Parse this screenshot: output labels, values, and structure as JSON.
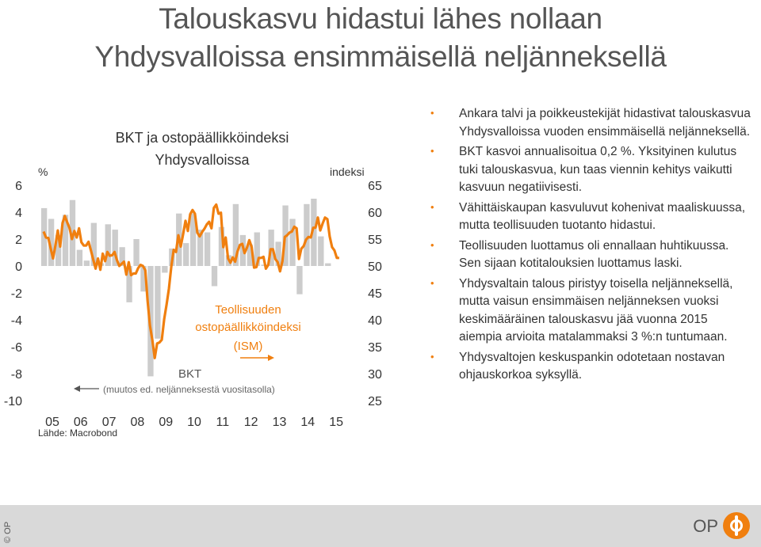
{
  "slide": {
    "title_line1": "Talouskasvu hidastui lähes nollaan",
    "title_line2": "Yhdysvalloissa ensimmäisellä neljänneksellä",
    "copyright": "© OP",
    "logo_text": "OP"
  },
  "bullets": [
    "Ankara talvi ja poikkeustekijät hidastivat talouskasvua Yhdysvalloissa vuoden ensimmäisellä neljänneksellä.",
    "BKT kasvoi annualisoitua 0,2 %. Yksityinen kulutus tuki talouskasvua, kun taas viennin kehitys vaikutti kasvuun negatiivisesti.",
    "Vähittäiskaupan kasvuluvut kohenivat maaliskuussa, mutta teollisuuden tuotanto hidastui.",
    "Teollisuuden luottamus oli ennallaan huhtikuussa. Sen sijaan kotitalouksien luottamus laski.",
    "Yhdysvaltain talous piristyy toisella neljänneksellä, mutta vaisun ensimmäisen neljänneksen vuoksi keskimääräinen talouskasvu jää vuonna 2015 aiempia arvioita matalammaksi 3 %:n tuntumaan.",
    "Yhdysvaltojen keskuspankin odotetaan nostavan ohjauskorkoa syksyllä."
  ],
  "colors": {
    "bar": "#cccccc",
    "line": "#f07f0f",
    "text": "#333333"
  },
  "chart_data": {
    "type": "bar+line",
    "title": "BKT ja ostopäällikköindeksi\nYhdysvalloissa",
    "left_unit": "%",
    "right_unit": "indeksi",
    "source": "Lähde: Macrobond",
    "ylim_left": [
      -10,
      6
    ],
    "yticks_left": [
      "6",
      "4",
      "2",
      "0",
      "-2",
      "-4",
      "-6",
      "-8",
      "-10"
    ],
    "ylim_right": [
      25,
      65
    ],
    "yticks_right": [
      "65",
      "60",
      "55",
      "50",
      "45",
      "40",
      "35",
      "30",
      "25"
    ],
    "xticks": [
      "05",
      "06",
      "07",
      "08",
      "09",
      "10",
      "11",
      "12",
      "13",
      "14",
      "15"
    ],
    "bar_series": {
      "name": "BKT",
      "note": "(muutos ed. neljänneksestä vuositasolla)",
      "x_start": 2005.0,
      "step": 0.25,
      "values": [
        4.3,
        3.5,
        2.3,
        3.8,
        4.9,
        1.2,
        0.4,
        3.2,
        0.2,
        3.1,
        2.7,
        1.4,
        -2.7,
        2.0,
        -1.9,
        -8.2,
        -5.4,
        -0.5,
        1.3,
        3.9,
        1.7,
        3.9,
        2.7,
        2.5,
        -1.5,
        2.9,
        0.8,
        4.6,
        2.3,
        1.6,
        2.5,
        0.1,
        2.7,
        1.8,
        4.5,
        3.5,
        -2.1,
        4.6,
        5.0,
        2.2,
        0.2
      ]
    },
    "line_series": {
      "name": "Teollisuuden ostopäällikköindeksi (ISM)",
      "x_start": 2005.0,
      "step": 0.0833,
      "values": [
        56.4,
        55.3,
        55.2,
        53.3,
        51.4,
        53.8,
        56.6,
        53.6,
        58.0,
        59.3,
        58.1,
        57.0,
        55.0,
        56.5,
        55.3,
        57.0,
        54.4,
        53.8,
        53.8,
        54.5,
        52.9,
        51.2,
        49.5,
        51.4,
        49.3,
        52.3,
        50.9,
        52.6,
        51.9,
        52.0,
        52.6,
        51.1,
        50.0,
        50.4,
        50.8,
        48.4,
        50.7,
        48.3,
        48.6,
        48.6,
        49.6,
        50.2,
        50.0,
        49.2,
        43.5,
        38.9,
        36.2,
        32.9,
        35.6,
        35.8,
        36.3,
        40.1,
        42.8,
        45.8,
        49.9,
        53.0,
        52.6,
        55.7,
        53.6,
        55.9,
        58.4,
        56.5,
        59.6,
        60.4,
        59.7,
        56.2,
        55.5,
        56.3,
        56.9,
        57.7,
        58.2,
        57.0,
        60.8,
        61.4,
        59.7,
        59.9,
        53.5,
        55.3,
        51.4,
        50.6,
        51.6,
        50.8,
        52.7,
        53.9,
        54.1,
        52.4,
        53.4,
        54.8,
        53.5,
        49.7,
        49.8,
        51.5,
        51.5,
        51.7,
        49.5,
        50.2,
        53.1,
        53.1,
        51.3,
        50.7,
        49.0,
        50.9,
        55.4,
        55.7,
        56.2,
        56.4,
        57.3,
        57.0,
        51.3,
        53.2,
        53.7,
        54.9,
        55.4,
        55.3,
        57.1,
        57.1,
        59.0,
        56.6,
        57.9,
        59.0,
        58.7,
        55.5,
        53.5,
        52.9,
        51.5,
        51.5
      ]
    }
  }
}
